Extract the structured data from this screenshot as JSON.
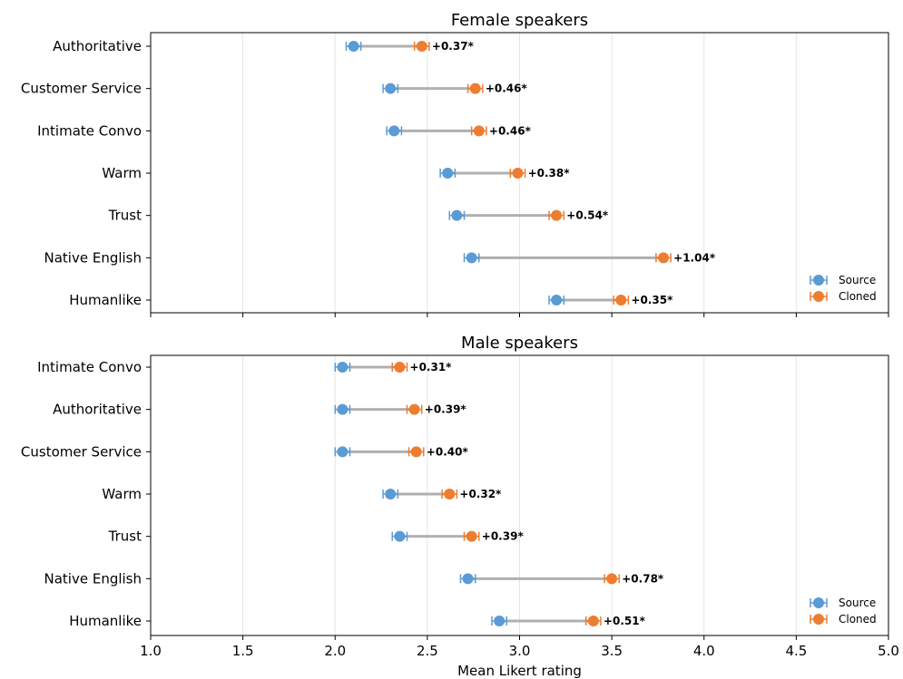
{
  "chart_data": {
    "type": "dumbbell",
    "xlabel": "Mean Likert rating",
    "xlim": [
      1.0,
      5.0
    ],
    "xticks": [
      "1.0",
      "1.5",
      "2.0",
      "2.5",
      "3.0",
      "3.5",
      "4.0",
      "4.5",
      "5.0"
    ],
    "grid": "vertical",
    "legend": {
      "placement": "lower-right",
      "entries": [
        {
          "name": "Source",
          "color": "#5b9bd5"
        },
        {
          "name": "Cloned",
          "color": "#ed7d31"
        }
      ]
    },
    "connector_color": "#b0b0b0",
    "panels": [
      {
        "title": "Female speakers",
        "rows": [
          {
            "category": "Authoritative",
            "source": 2.1,
            "cloned": 2.47,
            "diff": "+0.37*"
          },
          {
            "category": "Customer Service",
            "source": 2.3,
            "cloned": 2.76,
            "diff": "+0.46*"
          },
          {
            "category": "Intimate Convo",
            "source": 2.32,
            "cloned": 2.78,
            "diff": "+0.46*"
          },
          {
            "category": "Warm",
            "source": 2.61,
            "cloned": 2.99,
            "diff": "+0.38*"
          },
          {
            "category": "Trust",
            "source": 2.66,
            "cloned": 3.2,
            "diff": "+0.54*"
          },
          {
            "category": "Native English",
            "source": 2.74,
            "cloned": 3.78,
            "diff": "+1.04*"
          },
          {
            "category": "Humanlike",
            "source": 3.2,
            "cloned": 3.55,
            "diff": "+0.35*"
          }
        ]
      },
      {
        "title": "Male speakers",
        "rows": [
          {
            "category": "Intimate Convo",
            "source": 2.04,
            "cloned": 2.35,
            "diff": "+0.31*"
          },
          {
            "category": "Authoritative",
            "source": 2.04,
            "cloned": 2.43,
            "diff": "+0.39*"
          },
          {
            "category": "Customer Service",
            "source": 2.04,
            "cloned": 2.44,
            "diff": "+0.40*"
          },
          {
            "category": "Warm",
            "source": 2.3,
            "cloned": 2.62,
            "diff": "+0.32*"
          },
          {
            "category": "Trust",
            "source": 2.35,
            "cloned": 2.74,
            "diff": "+0.39*"
          },
          {
            "category": "Native English",
            "source": 2.72,
            "cloned": 3.5,
            "diff": "+0.78*"
          },
          {
            "category": "Humanlike",
            "source": 2.89,
            "cloned": 3.4,
            "diff": "+0.51*"
          }
        ]
      }
    ]
  }
}
